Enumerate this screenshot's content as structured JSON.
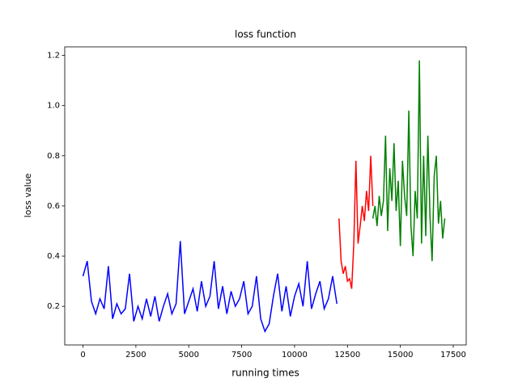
{
  "chart_data": {
    "type": "line",
    "title": "loss function",
    "x_label": "running times",
    "y_label": "loss value",
    "xlim": [
      -862,
      18112
    ],
    "ylim": [
      0.046,
      1.234
    ],
    "xticks": [
      0,
      2500,
      5000,
      7500,
      10000,
      12500,
      15000,
      17500
    ],
    "yticks": [
      0.2,
      0.4,
      0.6,
      0.8,
      {
        "value": 1,
        "label": "1.0"
      },
      1.2
    ],
    "series": [
      {
        "color": "#0000ff",
        "x": [
          0,
          200,
          400,
          600,
          800,
          1000,
          1200,
          1400,
          1600,
          1800,
          2000,
          2200,
          2400,
          2600,
          2800,
          3000,
          3200,
          3400,
          3600,
          3800,
          4000,
          4200,
          4400,
          4600,
          4800,
          5000,
          5200,
          5400,
          5600,
          5800,
          6000,
          6200,
          6400,
          6600,
          6800,
          7000,
          7200,
          7400,
          7600,
          7800,
          8000,
          8200,
          8400,
          8600,
          8800,
          9000,
          9200,
          9400,
          9600,
          9800,
          10000,
          10200,
          10400,
          10600,
          10800,
          11000,
          11200,
          11400,
          11600,
          11800,
          12000
        ],
        "values": [
          0.32,
          0.38,
          0.22,
          0.17,
          0.23,
          0.19,
          0.36,
          0.15,
          0.21,
          0.17,
          0.19,
          0.33,
          0.14,
          0.2,
          0.15,
          0.23,
          0.16,
          0.24,
          0.14,
          0.2,
          0.25,
          0.17,
          0.21,
          0.46,
          0.17,
          0.22,
          0.27,
          0.18,
          0.3,
          0.2,
          0.24,
          0.38,
          0.19,
          0.28,
          0.17,
          0.26,
          0.2,
          0.23,
          0.3,
          0.17,
          0.2,
          0.32,
          0.15,
          0.1,
          0.13,
          0.24,
          0.33,
          0.18,
          0.28,
          0.16,
          0.24,
          0.29,
          0.2,
          0.38,
          0.19,
          0.25,
          0.3,
          0.19,
          0.23,
          0.32,
          0.21
        ]
      },
      {
        "color": "#ff0000",
        "x": [
          12100,
          12200,
          12300,
          12400,
          12500,
          12600,
          12700,
          12800,
          12900,
          13000,
          13100,
          13200,
          13300,
          13400,
          13500,
          13600,
          13700
        ],
        "values": [
          0.55,
          0.38,
          0.33,
          0.36,
          0.3,
          0.31,
          0.27,
          0.45,
          0.78,
          0.45,
          0.52,
          0.6,
          0.54,
          0.66,
          0.58,
          0.8,
          0.6
        ]
      },
      {
        "color": "#008000",
        "x": [
          13700,
          13800,
          13900,
          14000,
          14100,
          14200,
          14300,
          14400,
          14500,
          14600,
          14700,
          14800,
          14900,
          15000,
          15100,
          15200,
          15300,
          15400,
          15500,
          15600,
          15700,
          15800,
          15900,
          16000,
          16100,
          16200,
          16300,
          16400,
          16500,
          16600,
          16700,
          16800,
          16900,
          17000,
          17100
        ],
        "values": [
          0.55,
          0.6,
          0.52,
          0.64,
          0.56,
          0.62,
          0.88,
          0.5,
          0.75,
          0.62,
          0.85,
          0.58,
          0.7,
          0.44,
          0.78,
          0.64,
          0.56,
          0.98,
          0.52,
          0.4,
          0.66,
          0.55,
          1.18,
          0.45,
          0.8,
          0.48,
          0.88,
          0.56,
          0.38,
          0.72,
          0.8,
          0.53,
          0.62,
          0.47,
          0.55
        ]
      }
    ]
  }
}
